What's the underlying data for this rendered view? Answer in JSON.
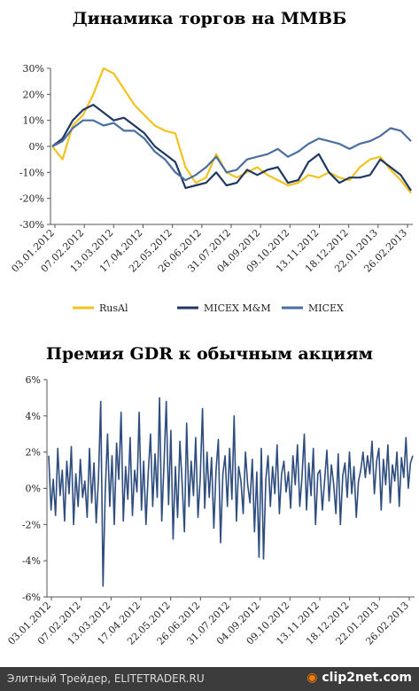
{
  "chart_data": [
    {
      "type": "line",
      "title": "Динамика торгов на ММВБ",
      "xlabel": "",
      "ylabel": "",
      "ylim": [
        -30,
        30
      ],
      "y_ticks": [
        "30%",
        "20%",
        "10%",
        "0%",
        "-10%",
        "-20%",
        "-30%"
      ],
      "x_ticks": [
        "03.01.2012",
        "07.02.2012",
        "13.03.2012",
        "17.04.2012",
        "22.05.2012",
        "26.06.2012",
        "31.07.2012",
        "04.09.2012",
        "09.10.2012",
        "13.11.2012",
        "18.12.2012",
        "22.01.2013",
        "26.02.2013"
      ],
      "legend_position": "bottom",
      "grid": false,
      "series": [
        {
          "name": "RusAl",
          "color": "#f2c220",
          "values": [
            0,
            -5,
            8,
            12,
            20,
            30,
            28,
            22,
            16,
            12,
            8,
            6,
            5,
            -8,
            -14,
            -12,
            -3,
            -10,
            -12,
            -10,
            -8,
            -11,
            -13,
            -15,
            -14,
            -11,
            -12,
            -10,
            -12,
            -13,
            -8,
            -5,
            -4,
            -9,
            -13,
            -18
          ]
        },
        {
          "name": "MICEX M&M",
          "color": "#1f3864",
          "values": [
            0,
            3,
            10,
            14,
            16,
            13,
            10,
            11,
            8,
            5,
            0,
            -3,
            -6,
            -16,
            -15,
            -14,
            -10,
            -15,
            -14,
            -9,
            -11,
            -9,
            -8,
            -14,
            -13,
            -6,
            -3,
            -10,
            -14,
            -12,
            -12,
            -11,
            -5,
            -8,
            -11,
            -17
          ]
        },
        {
          "name": "MICEX",
          "color": "#4a6ea0",
          "values": [
            0,
            2,
            7,
            10,
            10,
            8,
            9,
            6,
            6,
            3,
            -2,
            -5,
            -10,
            -13,
            -11,
            -8,
            -4,
            -10,
            -9,
            -5,
            -4,
            -3,
            -1,
            -4,
            -2,
            1,
            3,
            2,
            1,
            -1,
            1,
            2,
            4,
            7,
            6,
            2
          ]
        }
      ]
    },
    {
      "type": "line",
      "title": "Премия GDR к обычным акциям",
      "xlabel": "",
      "ylabel": "",
      "ylim": [
        -6,
        6
      ],
      "y_ticks": [
        "6%",
        "4%",
        "2%",
        "0%",
        "-2%",
        "-4%",
        "-6%"
      ],
      "x_ticks": [
        "03.01.2012",
        "07.02.2012",
        "13.03.2012",
        "17.04.2012",
        "22.05.2012",
        "26.06.2012",
        "31.07.2012",
        "04.09.2012",
        "09.10.2012",
        "13.11.2012",
        "18.12.2012",
        "22.01.2013",
        "26.02.2013"
      ],
      "grid": false,
      "series": [
        {
          "color": "#2e4d7e",
          "values": [
            1.8,
            -1.2,
            0.5,
            -1.5,
            2.2,
            -0.4,
            1.0,
            -1.8,
            1.5,
            -0.3,
            2.3,
            -2.0,
            0.8,
            -1.0,
            1.6,
            -0.5,
            0.4,
            -1.6,
            2.2,
            -0.8,
            1.4,
            -1.9,
            0.6,
            4.8,
            -5.4,
            -0.2,
            3.0,
            -1.0,
            1.8,
            -2.0,
            2.5,
            0.5,
            4.2,
            -1.8,
            1.2,
            -0.6,
            2.8,
            -1.5,
            1.0,
            -0.2,
            4.2,
            -1.2,
            1.5,
            -2.0,
            0.8,
            3.0,
            -1.0,
            1.9,
            -0.5,
            5.0,
            -1.8,
            1.4,
            4.8,
            -0.9,
            3.2,
            -2.8,
            1.2,
            -1.6,
            2.6,
            0.3,
            -2.4,
            3.6,
            -1.0,
            1.5,
            -0.4,
            2.8,
            -1.6,
            0.5,
            4.4,
            -1.1,
            2.0,
            -0.5,
            1.7,
            -2.2,
            1.0,
            2.7,
            -3.0,
            0.8,
            1.8,
            -1.0,
            2.2,
            -0.6,
            4.0,
            -1.8,
            1.2,
            0.4,
            -1.4,
            2.0,
            0.2,
            -0.8,
            1.6,
            -2.4,
            0.9,
            -3.8,
            2.2,
            -3.9,
            0.5,
            1.8,
            -1.0,
            1.2,
            -0.3,
            2.4,
            -1.4,
            0.8,
            1.5,
            -0.2,
            0.9,
            -1.1,
            1.8,
            0.2,
            2.4,
            -1.0,
            0.6,
            3.0,
            -1.2,
            1.4,
            -0.4,
            2.2,
            -2.0,
            0.8,
            1.0,
            -1.2,
            0.4,
            2.1,
            -0.7,
            1.3,
            0.2,
            -1.4,
            1.9,
            -2.0,
            0.7,
            1.4,
            -0.5,
            2.0,
            -0.3,
            1.2,
            -1.6,
            0.4,
            1.0,
            2.0,
            0.6,
            1.8,
            0.8,
            2.6,
            -0.3,
            1.5,
            2.2,
            -1.2,
            1.6,
            0.2,
            2.4,
            -0.8,
            1.3,
            0.4,
            2.0,
            -1.0,
            1.7,
            0.6,
            2.8,
            0.0,
            1.4,
            1.8
          ]
        }
      ]
    }
  ],
  "footer": {
    "left": "Элитный Трейдер, ELITETRADER.RU",
    "logo": "clip2net.com",
    "logo_icon": "camera-icon"
  }
}
